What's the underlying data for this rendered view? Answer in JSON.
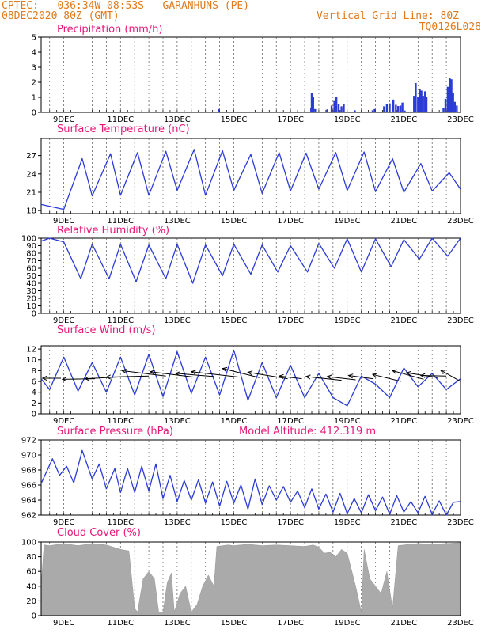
{
  "header": {
    "left_line1": "CPTEC:   036:34W-08:53S   GARANHUNS (PE)",
    "left_line2": "08DEC2020 80Z (GMT)",
    "right_line1": "Vertical Grid Line: 80Z",
    "right_line2": "TQ0126L028"
  },
  "colors": {
    "series": "#2b3bd6",
    "title": "#e8177a",
    "header": "#e07a1c",
    "cloud": "#aaaaaa",
    "arrow": "#000000"
  },
  "x_axis_labels": [
    "9DEC",
    "11DEC",
    "13DEC",
    "15DEC",
    "17DEC",
    "19DEC",
    "21DEC",
    "23DEC"
  ],
  "chart_data": [
    {
      "type": "bar",
      "title": "Precipitation (mm/h)",
      "ylim": [
        0,
        5
      ],
      "yticks": [
        0,
        1,
        2,
        3,
        4,
        5
      ],
      "xlim_days": [
        8.2,
        23.0
      ],
      "grid": "vertical dashed",
      "bars": [
        [
          14.47,
          0.22
        ],
        [
          17.62,
          0.05
        ],
        [
          17.73,
          0.32
        ],
        [
          17.75,
          1.3
        ],
        [
          17.8,
          1.05
        ],
        [
          17.87,
          0.22
        ],
        [
          18.3,
          0.2
        ],
        [
          18.45,
          0.45
        ],
        [
          18.55,
          0.75
        ],
        [
          18.62,
          1.0
        ],
        [
          18.7,
          0.55
        ],
        [
          18.8,
          0.4
        ],
        [
          18.88,
          0.55
        ],
        [
          19.27,
          0.14
        ],
        [
          19.9,
          0.14
        ],
        [
          19.97,
          0.22
        ],
        [
          20.3,
          0.4
        ],
        [
          20.4,
          0.55
        ],
        [
          20.5,
          0.6
        ],
        [
          20.63,
          0.85
        ],
        [
          20.72,
          0.5
        ],
        [
          20.8,
          0.42
        ],
        [
          20.88,
          0.45
        ],
        [
          20.95,
          0.65
        ],
        [
          21.03,
          0.12
        ],
        [
          21.36,
          1.1
        ],
        [
          21.42,
          1.95
        ],
        [
          21.5,
          1.0
        ],
        [
          21.56,
          1.55
        ],
        [
          21.62,
          1.45
        ],
        [
          21.68,
          1.1
        ],
        [
          21.75,
          1.4
        ],
        [
          21.8,
          1.0
        ],
        [
          22.4,
          0.28
        ],
        [
          22.47,
          0.9
        ],
        [
          22.55,
          1.7
        ],
        [
          22.62,
          2.3
        ],
        [
          22.68,
          2.2
        ],
        [
          22.74,
          1.3
        ],
        [
          22.8,
          0.7
        ],
        [
          22.87,
          0.45
        ]
      ]
    },
    {
      "type": "line",
      "title": "Surface Temperature (nC)",
      "ylim": [
        17.5,
        29.8
      ],
      "yticks": [
        18,
        21,
        24,
        27
      ],
      "x_days": [
        8.2,
        9.0,
        9.65,
        10.0,
        10.65,
        11.0,
        11.6,
        12.0,
        12.6,
        13.0,
        13.6,
        14.0,
        14.6,
        15.0,
        15.6,
        16.0,
        16.6,
        17.0,
        17.55,
        18.0,
        18.6,
        19.0,
        19.6,
        20.0,
        20.6,
        21.0,
        21.6,
        22.0,
        22.6,
        23.0
      ],
      "y_values": [
        19.0,
        18.2,
        26.5,
        20.4,
        27.3,
        20.5,
        27.5,
        20.5,
        27.7,
        21.3,
        28.0,
        20.5,
        27.8,
        21.3,
        27.2,
        20.8,
        27.5,
        21.2,
        27.4,
        21.5,
        27.5,
        21.3,
        27.6,
        21.1,
        26.5,
        21.0,
        25.7,
        21.2,
        24.2,
        21.5
      ]
    },
    {
      "type": "line",
      "title": "Relative Humidity (%)",
      "ylim": [
        0,
        100
      ],
      "yticks": [
        0,
        10,
        20,
        30,
        40,
        50,
        60,
        70,
        80,
        90,
        100
      ],
      "x_days": [
        8.2,
        8.5,
        9.0,
        9.6,
        10.0,
        10.6,
        11.0,
        11.55,
        12.0,
        12.6,
        13.0,
        13.55,
        14.0,
        14.6,
        15.0,
        15.6,
        16.0,
        16.55,
        17.0,
        17.6,
        18.0,
        18.55,
        19.0,
        19.5,
        20.0,
        20.55,
        21.0,
        21.55,
        22.0,
        22.55,
        23.0
      ],
      "y_values": [
        96,
        100,
        95,
        46,
        92,
        46,
        92,
        42,
        91,
        46,
        92,
        40,
        91,
        50,
        92,
        52,
        91,
        55,
        90,
        55,
        93,
        60,
        99,
        55,
        99,
        62,
        98,
        72,
        100,
        76,
        100
      ]
    },
    {
      "type": "line",
      "title": "Surface Wind (m/s)",
      "ylim": [
        0,
        12.6
      ],
      "yticks": [
        0,
        2,
        4,
        6,
        8,
        10,
        12
      ],
      "x_days": [
        8.2,
        8.5,
        9.0,
        9.5,
        10.0,
        10.5,
        11.0,
        11.5,
        12.0,
        12.5,
        13.0,
        13.5,
        14.0,
        14.5,
        15.0,
        15.5,
        16.0,
        16.5,
        17.0,
        17.5,
        18.0,
        18.5,
        19.0,
        19.5,
        20.0,
        20.5,
        21.0,
        21.5,
        22.0,
        22.5,
        23.0
      ],
      "y_values": [
        6.5,
        4.5,
        10.5,
        4.2,
        9.5,
        4.0,
        10.5,
        3.5,
        11.0,
        3.2,
        11.5,
        3.8,
        10.5,
        3.5,
        11.8,
        2.5,
        9.5,
        3.0,
        9.0,
        3.0,
        7.5,
        3.0,
        1.5,
        7.0,
        5.5,
        3.0,
        8.5,
        5.0,
        7.5,
        4.5,
        6.5
      ],
      "wind_arrows": [
        [
          8.25,
          0,
          6.6,
          8.9,
          6.6
        ],
        [
          8.95,
          0,
          6.4,
          10.1,
          6.5
        ],
        [
          9.75,
          0,
          6.5,
          11.3,
          6.9
        ],
        [
          10.5,
          0,
          6.8,
          12.0,
          7.0
        ],
        [
          11.05,
          0,
          8.0,
          12.6,
          7.0
        ],
        [
          12.05,
          0,
          7.8,
          13.6,
          6.8
        ],
        [
          12.95,
          0,
          7.5,
          14.3,
          6.9
        ],
        [
          13.5,
          0,
          7.8,
          15.2,
          6.8
        ],
        [
          14.6,
          0,
          8.4,
          15.9,
          6.7
        ],
        [
          15.5,
          0,
          7.7,
          16.9,
          6.5
        ],
        [
          16.6,
          0,
          7.0,
          17.4,
          6.5
        ],
        [
          17.55,
          0,
          6.9,
          18.8,
          6.2
        ],
        [
          18.3,
          0,
          6.9,
          19.3,
          6.3
        ],
        [
          19.05,
          0,
          7.1,
          19.9,
          6.5
        ],
        [
          19.9,
          0,
          7.3,
          20.9,
          6.0
        ],
        [
          20.6,
          0,
          8.0,
          21.7,
          6.4
        ],
        [
          21.1,
          0,
          7.6,
          22.2,
          6.7
        ],
        [
          21.6,
          0,
          7.1,
          22.5,
          7.0
        ],
        [
          22.3,
          0,
          8.1,
          23.0,
          6.0
        ]
      ]
    },
    {
      "type": "line",
      "title": "Surface Pressure (hPa)",
      "annotation": "Model Altitude: 412.319  m",
      "ylim": [
        962,
        972
      ],
      "yticks": [
        962,
        964,
        966,
        968,
        970,
        972
      ],
      "x_days": [
        8.2,
        8.6,
        8.85,
        9.1,
        9.35,
        9.65,
        10.0,
        10.25,
        10.5,
        10.8,
        11.0,
        11.25,
        11.5,
        11.75,
        12.0,
        12.25,
        12.5,
        12.75,
        13.0,
        13.25,
        13.5,
        13.75,
        14.0,
        14.25,
        14.5,
        14.75,
        15.0,
        15.25,
        15.5,
        15.75,
        16.0,
        16.25,
        16.5,
        16.75,
        17.0,
        17.25,
        17.5,
        17.75,
        18.0,
        18.25,
        18.5,
        18.75,
        19.0,
        19.25,
        19.5,
        19.75,
        20.0,
        20.25,
        20.5,
        20.75,
        21.0,
        21.25,
        21.5,
        21.75,
        22.0,
        22.25,
        22.5,
        22.75,
        23.0
      ],
      "y_values": [
        966.2,
        969.5,
        967.3,
        968.5,
        966.3,
        970.6,
        966.8,
        968.8,
        965.5,
        968.2,
        965.0,
        968.2,
        965.0,
        968.5,
        965.2,
        968.8,
        964.2,
        967.3,
        963.8,
        966.6,
        964.0,
        966.7,
        963.6,
        966.4,
        963.2,
        966.5,
        963.6,
        966.0,
        962.8,
        966.8,
        963.4,
        965.9,
        964.0,
        965.8,
        963.7,
        965.2,
        963.0,
        965.5,
        962.8,
        964.8,
        962.4,
        964.9,
        962.2,
        964.2,
        962.3,
        964.7,
        962.6,
        964.4,
        962.1,
        964.6,
        962.4,
        963.8,
        962.3,
        964.5,
        962.1,
        963.9,
        962.0,
        963.7,
        963.8
      ]
    },
    {
      "type": "area",
      "title": "Cloud Cover (%)",
      "ylim": [
        0,
        100
      ],
      "yticks": [
        0,
        20,
        40,
        60,
        80,
        100
      ],
      "x_days": [
        8.2,
        8.3,
        8.5,
        9.0,
        9.5,
        10.0,
        10.5,
        11.0,
        11.3,
        11.5,
        11.6,
        11.8,
        12.0,
        12.2,
        12.35,
        12.5,
        12.65,
        12.8,
        12.9,
        13.1,
        13.3,
        13.5,
        13.7,
        13.9,
        14.1,
        14.3,
        14.4,
        14.6,
        14.8,
        15.0,
        15.5,
        16.0,
        16.5,
        17.0,
        17.5,
        17.8,
        18.0,
        18.2,
        18.4,
        18.6,
        18.8,
        19.0,
        19.3,
        19.5,
        19.6,
        19.8,
        20.0,
        20.2,
        20.4,
        20.6,
        20.8,
        21.0,
        21.5,
        22.0,
        22.5,
        23.0
      ],
      "y_values": [
        40,
        96,
        95,
        98,
        95,
        98,
        96,
        90,
        88,
        10,
        5,
        50,
        60,
        50,
        5,
        5,
        45,
        58,
        5,
        30,
        40,
        5,
        15,
        40,
        55,
        40,
        94,
        95,
        96,
        95,
        97,
        95,
        96,
        95,
        94,
        96,
        93,
        85,
        86,
        80,
        90,
        85,
        40,
        5,
        90,
        50,
        40,
        30,
        60,
        10,
        95,
        96,
        98,
        97,
        98,
        99
      ]
    }
  ]
}
